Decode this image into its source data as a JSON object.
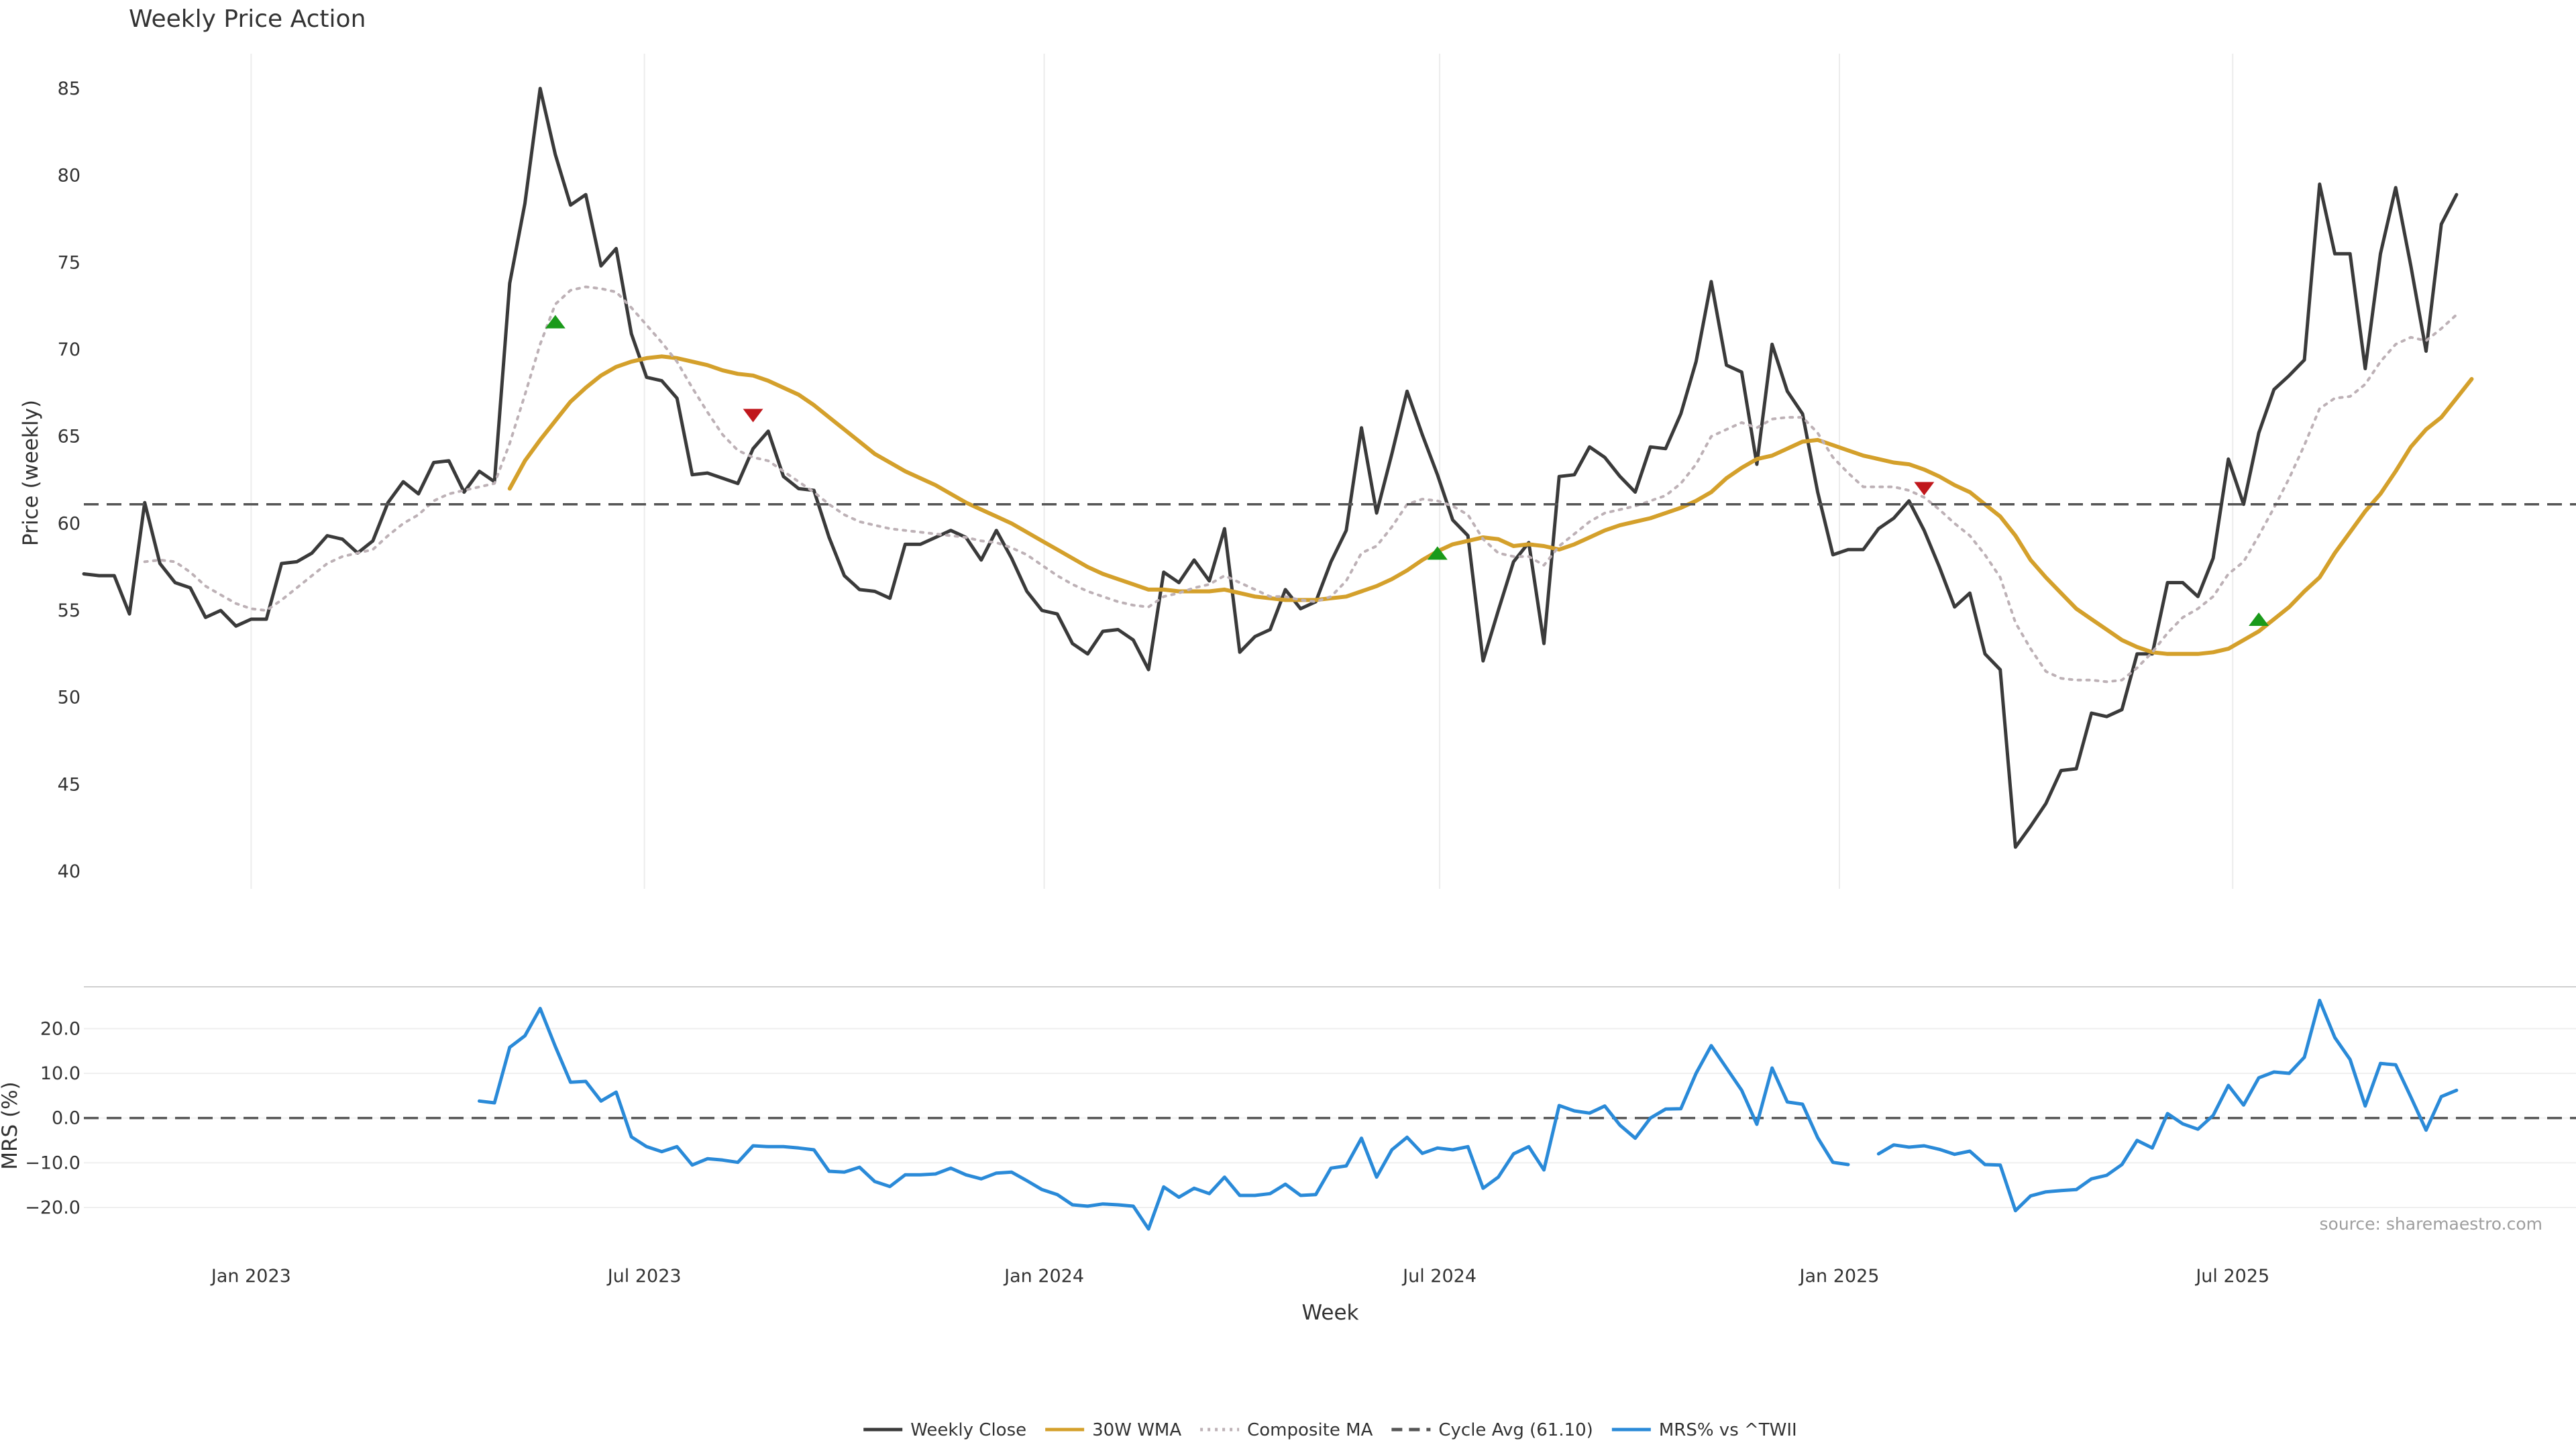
{
  "chart_data": {
    "type": "line",
    "title": "Weekly Price Action",
    "source_note": "source: sharemaestro.com",
    "xlabel": "Week",
    "x_ticks": [
      {
        "date": "2023-01-01",
        "label": "Jan 2023"
      },
      {
        "date": "2023-07-01",
        "label": "Jul 2023"
      },
      {
        "date": "2024-01-01",
        "label": "Jan 2024"
      },
      {
        "date": "2024-07-01",
        "label": "Jul 2024"
      },
      {
        "date": "2025-01-01",
        "label": "Jan 2025"
      },
      {
        "date": "2025-07-01",
        "label": "Jul 2025"
      }
    ],
    "x_range": [
      "2022-10-16",
      "2025-12-06"
    ],
    "dates": [
      "2022-10-16",
      "2022-10-23",
      "2022-10-30",
      "2022-11-06",
      "2022-11-13",
      "2022-11-20",
      "2022-11-27",
      "2022-12-04",
      "2022-12-11",
      "2022-12-18",
      "2022-12-25",
      "2023-01-01",
      "2023-01-08",
      "2023-01-15",
      "2023-01-22",
      "2023-01-29",
      "2023-02-05",
      "2023-02-12",
      "2023-02-19",
      "2023-02-26",
      "2023-03-05",
      "2023-03-12",
      "2023-03-19",
      "2023-03-26",
      "2023-04-02",
      "2023-04-09",
      "2023-04-16",
      "2023-04-23",
      "2023-04-30",
      "2023-05-07",
      "2023-05-14",
      "2023-05-21",
      "2023-05-28",
      "2023-06-04",
      "2023-06-11",
      "2023-06-18",
      "2023-06-25",
      "2023-07-02",
      "2023-07-09",
      "2023-07-16",
      "2023-07-23",
      "2023-07-30",
      "2023-08-06",
      "2023-08-13",
      "2023-08-20",
      "2023-08-27",
      "2023-09-03",
      "2023-09-10",
      "2023-09-17",
      "2023-09-24",
      "2023-10-01",
      "2023-10-08",
      "2023-10-15",
      "2023-10-22",
      "2023-10-29",
      "2023-11-05",
      "2023-11-12",
      "2023-11-19",
      "2023-11-26",
      "2023-12-03",
      "2023-12-10",
      "2023-12-17",
      "2023-12-24",
      "2023-12-31",
      "2024-01-07",
      "2024-01-14",
      "2024-01-21",
      "2024-01-28",
      "2024-02-04",
      "2024-02-11",
      "2024-02-18",
      "2024-02-25",
      "2024-03-03",
      "2024-03-10",
      "2024-03-17",
      "2024-03-24",
      "2024-03-31",
      "2024-04-07",
      "2024-04-14",
      "2024-04-21",
      "2024-04-28",
      "2024-05-05",
      "2024-05-12",
      "2024-05-19",
      "2024-05-26",
      "2024-06-02",
      "2024-06-09",
      "2024-06-16",
      "2024-06-23",
      "2024-06-30",
      "2024-07-07",
      "2024-07-14",
      "2024-07-21",
      "2024-07-28",
      "2024-08-04",
      "2024-08-11",
      "2024-08-18",
      "2024-08-25",
      "2024-09-01",
      "2024-09-08",
      "2024-09-15",
      "2024-09-22",
      "2024-09-29",
      "2024-10-06",
      "2024-10-13",
      "2024-10-20",
      "2024-10-27",
      "2024-11-03",
      "2024-11-10",
      "2024-11-17",
      "2024-11-24",
      "2024-12-01",
      "2024-12-08",
      "2024-12-15",
      "2024-12-22",
      "2024-12-29",
      "2025-01-05",
      "2025-01-12",
      "2025-01-19",
      "2025-01-26",
      "2025-02-02",
      "2025-02-09",
      "2025-02-16",
      "2025-02-23",
      "2025-03-02",
      "2025-03-09",
      "2025-03-16",
      "2025-03-23",
      "2025-03-30",
      "2025-04-06",
      "2025-04-13",
      "2025-04-20",
      "2025-04-27",
      "2025-05-04",
      "2025-05-11",
      "2025-05-18",
      "2025-05-25",
      "2025-06-01",
      "2025-06-08",
      "2025-06-15",
      "2025-06-22",
      "2025-06-29",
      "2025-07-06",
      "2025-07-13",
      "2025-07-20",
      "2025-07-27",
      "2025-08-03",
      "2025-08-10",
      "2025-08-17",
      "2025-08-24",
      "2025-08-31",
      "2025-09-07",
      "2025-09-14",
      "2025-09-21",
      "2025-09-28",
      "2025-10-05",
      "2025-10-12",
      "2025-10-19",
      "2025-10-26",
      "2025-11-02",
      "2025-11-09",
      "2025-11-16",
      "2025-11-23",
      "2025-11-30",
      "2025-12-06"
    ],
    "price_panel": {
      "ylabel": "Price (weekly)",
      "ylim": [
        39,
        87
      ],
      "yticks": [
        40,
        45,
        50,
        55,
        60,
        65,
        70,
        75,
        80,
        85
      ],
      "grid": "x-only",
      "series": [
        {
          "name": "Weekly Close",
          "color": "#3a3a3a",
          "style": "solid",
          "values": [
            57.1,
            57.0,
            57.0,
            54.8,
            61.2,
            57.7,
            56.6,
            56.3,
            54.6,
            55.0,
            54.1,
            54.5,
            54.5,
            57.7,
            57.8,
            58.3,
            59.3,
            59.1,
            58.3,
            59.0,
            61.2,
            62.4,
            61.7,
            63.5,
            63.6,
            61.8,
            63.0,
            62.4,
            73.8,
            78.4,
            85.0,
            81.2,
            78.3,
            78.9,
            74.8,
            75.8,
            70.9,
            68.4,
            68.2,
            67.2,
            62.8,
            62.9,
            62.6,
            62.3,
            64.3,
            65.3,
            62.7,
            62.0,
            61.9,
            59.2,
            57.0,
            56.2,
            56.1,
            55.7,
            58.8,
            58.8,
            59.2,
            59.6,
            59.2,
            57.9,
            59.6,
            58.0,
            56.1,
            55.0,
            54.8,
            53.1,
            52.5,
            53.8,
            53.9,
            53.3,
            51.6,
            57.2,
            56.6,
            57.9,
            56.7,
            59.7,
            52.6,
            53.5,
            53.9,
            56.2,
            55.1,
            55.5,
            57.8,
            59.6,
            65.5,
            60.6,
            64.0,
            67.6,
            65.1,
            62.8,
            60.2,
            59.3,
            52.1,
            55.0,
            57.8,
            58.9,
            53.1,
            62.7,
            62.8,
            64.4,
            63.8,
            62.7,
            61.8,
            64.4,
            64.3,
            66.3,
            69.3,
            73.9,
            69.1,
            68.7,
            63.4,
            70.3,
            67.6,
            66.3,
            61.8,
            58.2,
            58.5,
            58.5,
            59.7,
            60.3,
            61.3,
            59.6,
            57.5,
            55.2,
            56.0,
            52.5,
            51.6,
            41.4,
            42.6,
            43.9,
            45.8,
            45.9,
            49.1,
            48.9,
            49.3,
            52.5,
            52.5,
            56.6,
            56.6,
            55.8,
            58.0,
            63.7,
            61.1,
            65.2,
            67.7,
            68.5,
            69.4,
            79.5,
            75.5,
            75.5,
            68.9,
            75.5,
            79.3,
            74.8,
            69.9,
            77.2,
            78.9
          ]
        },
        {
          "name": "30W WMA",
          "color": "#d4a02b",
          "style": "solid",
          "values": [
            null,
            null,
            null,
            null,
            null,
            null,
            null,
            null,
            null,
            null,
            null,
            null,
            null,
            null,
            null,
            null,
            null,
            null,
            null,
            null,
            null,
            null,
            null,
            null,
            null,
            null,
            null,
            null,
            62.0,
            63.6,
            64.8,
            65.9,
            67.0,
            67.8,
            68.5,
            69.0,
            69.3,
            69.5,
            69.6,
            69.5,
            69.3,
            69.1,
            68.8,
            68.6,
            68.5,
            68.2,
            67.8,
            67.4,
            66.8,
            66.1,
            65.4,
            64.7,
            64.0,
            63.5,
            63.0,
            62.6,
            62.2,
            61.7,
            61.2,
            60.8,
            60.4,
            60.0,
            59.5,
            59.0,
            58.5,
            58.0,
            57.5,
            57.1,
            56.8,
            56.5,
            56.2,
            56.2,
            56.1,
            56.1,
            56.1,
            56.2,
            56.0,
            55.8,
            55.7,
            55.6,
            55.6,
            55.6,
            55.7,
            55.8,
            56.1,
            56.4,
            56.8,
            57.3,
            57.9,
            58.4,
            58.8,
            59.0,
            59.2,
            59.1,
            58.7,
            58.8,
            58.7,
            58.5,
            58.8,
            59.2,
            59.6,
            59.9,
            60.1,
            60.3,
            60.6,
            60.9,
            61.3,
            61.8,
            62.6,
            63.2,
            63.7,
            63.9,
            64.3,
            64.7,
            64.8,
            64.5,
            64.2,
            63.9,
            63.7,
            63.5,
            63.4,
            63.1,
            62.7,
            62.2,
            61.8,
            61.1,
            60.4,
            59.3,
            57.9,
            56.9,
            56.0,
            55.1,
            54.5,
            53.9,
            53.3,
            52.9,
            52.6,
            52.5,
            52.5,
            52.5,
            52.6,
            52.8,
            53.3,
            53.8,
            54.5,
            55.2,
            56.1,
            56.9,
            58.3,
            59.5,
            60.7,
            61.7,
            63.0,
            64.4,
            65.4,
            66.1,
            67.2,
            68.3
          ]
        },
        {
          "name": "Composite MA",
          "color": "#bdb1b6",
          "style": "dotted",
          "values": [
            null,
            null,
            null,
            null,
            57.8,
            57.9,
            57.8,
            57.2,
            56.4,
            55.9,
            55.4,
            55.1,
            55.0,
            55.6,
            56.3,
            57.0,
            57.7,
            58.1,
            58.3,
            58.5,
            59.3,
            60.0,
            60.5,
            61.3,
            61.7,
            61.9,
            62.1,
            62.3,
            64.6,
            67.4,
            70.3,
            72.6,
            73.4,
            73.6,
            73.5,
            73.3,
            72.4,
            71.4,
            70.4,
            69.3,
            67.8,
            66.4,
            65.1,
            64.2,
            63.8,
            63.6,
            63.0,
            62.4,
            61.8,
            61.1,
            60.5,
            60.1,
            59.9,
            59.7,
            59.6,
            59.5,
            59.4,
            59.3,
            59.2,
            59.0,
            58.9,
            58.6,
            58.2,
            57.6,
            57.0,
            56.5,
            56.1,
            55.8,
            55.5,
            55.3,
            55.2,
            55.8,
            56.0,
            56.3,
            56.5,
            57.0,
            56.6,
            56.2,
            55.8,
            55.8,
            55.6,
            55.5,
            55.8,
            56.7,
            58.3,
            58.7,
            59.8,
            61.1,
            61.4,
            61.3,
            61.0,
            60.5,
            59.1,
            58.3,
            58.1,
            58.1,
            57.6,
            58.7,
            59.4,
            60.1,
            60.6,
            60.8,
            61.0,
            61.3,
            61.6,
            62.3,
            63.4,
            65.0,
            65.4,
            65.8,
            65.5,
            66.0,
            66.1,
            66.1,
            65.2,
            63.8,
            62.9,
            62.1,
            62.1,
            62.1,
            61.9,
            61.5,
            60.8,
            60.0,
            59.3,
            58.2,
            56.9,
            54.3,
            52.8,
            51.5,
            51.1,
            51.0,
            51.0,
            50.9,
            51.0,
            51.7,
            52.6,
            53.7,
            54.6,
            55.1,
            55.8,
            57.1,
            57.8,
            59.3,
            60.9,
            62.6,
            64.5,
            66.6,
            67.2,
            67.3,
            68.0,
            69.3,
            70.3,
            70.7,
            70.5,
            71.2,
            72.0
          ]
        },
        {
          "name": "Cycle Avg (61.10)",
          "color": "#555555",
          "style": "dashed",
          "value": 61.1
        }
      ],
      "markers": [
        {
          "date": "2023-05-21",
          "value": 71.6,
          "kind": "up",
          "color": "#1a9a1a"
        },
        {
          "date": "2023-08-20",
          "value": 66.2,
          "kind": "down",
          "color": "#c0171c"
        },
        {
          "date": "2024-06-30",
          "value": 58.3,
          "kind": "up",
          "color": "#1a9a1a"
        },
        {
          "date": "2025-02-09",
          "value": 62.0,
          "kind": "down",
          "color": "#c0171c"
        },
        {
          "date": "2025-07-13",
          "value": 54.5,
          "kind": "up",
          "color": "#1a9a1a"
        }
      ]
    },
    "mrs_panel": {
      "ylabel": "MRS (%)",
      "ylim": [
        -26,
        28
      ],
      "yticks": [
        -20,
        -10,
        0,
        10,
        20
      ],
      "tick_labels": [
        "−20.0",
        "−10.0",
        "0.0",
        "10.0",
        "20.0"
      ],
      "grid": "y",
      "zero_line": {
        "value": 0,
        "style": "dashed",
        "color": "#555555"
      },
      "series": [
        {
          "name": "MRS% vs ^TWII",
          "color": "#2a8ad8",
          "style": "solid",
          "values": [
            null,
            null,
            null,
            null,
            null,
            null,
            null,
            null,
            null,
            null,
            null,
            null,
            null,
            null,
            null,
            null,
            null,
            null,
            null,
            null,
            null,
            null,
            null,
            null,
            null,
            null,
            3.8,
            3.4,
            15.8,
            18.4,
            24.5,
            16.0,
            8.0,
            8.2,
            3.8,
            5.8,
            -4.2,
            -6.4,
            -7.5,
            -6.4,
            -10.5,
            -9.1,
            -9.4,
            -9.9,
            -6.2,
            -6.4,
            -6.4,
            -6.7,
            -7.1,
            -11.9,
            -12.1,
            -11.0,
            -14.2,
            -15.3,
            -12.7,
            -12.7,
            -12.5,
            -11.2,
            -12.7,
            -13.6,
            -12.3,
            -12.1,
            -14.0,
            -16.0,
            -17.1,
            -19.4,
            -19.7,
            -19.2,
            -19.4,
            -19.7,
            -24.8,
            -15.4,
            -17.7,
            -15.7,
            -16.9,
            -13.2,
            -17.3,
            -17.3,
            -16.9,
            -14.8,
            -17.3,
            -17.1,
            -11.2,
            -10.7,
            -4.5,
            -13.2,
            -7.1,
            -4.3,
            -7.9,
            -6.7,
            -7.1,
            -6.4,
            -15.7,
            -13.2,
            -8.0,
            -6.4,
            -11.6,
            2.8,
            1.6,
            1.1,
            2.7,
            -1.6,
            -4.5,
            0.0,
            2.0,
            2.1,
            10.0,
            16.2,
            11.2,
            6.2,
            -1.4,
            11.2,
            3.6,
            3.1,
            -4.4,
            -9.9,
            -10.4,
            null,
            -8.0,
            -6.0,
            -6.5,
            -6.2,
            -7.0,
            -8.1,
            -7.4,
            -10.4,
            -10.5,
            -20.7,
            -17.4,
            -16.5,
            -16.2,
            -16.0,
            -13.6,
            -12.8,
            -10.4,
            -5.0,
            -6.7,
            1.0,
            -1.3,
            -2.5,
            0.6,
            7.3,
            2.9,
            9.0,
            10.3,
            10.0,
            13.6,
            26.3,
            18.0,
            13.1,
            2.7,
            12.2,
            11.9,
            4.7,
            -2.7,
            4.8,
            6.2
          ]
        }
      ]
    },
    "legend": {
      "placement": "bottom-center",
      "entries": [
        {
          "label": "Weekly Close",
          "color": "#3a3a3a",
          "style": "solid"
        },
        {
          "label": "30W WMA",
          "color": "#d4a02b",
          "style": "solid"
        },
        {
          "label": "Composite MA",
          "color": "#bdb1b6",
          "style": "dotted"
        },
        {
          "label": "Cycle Avg (61.10)",
          "color": "#555555",
          "style": "dashed"
        },
        {
          "label": "MRS% vs ^TWII",
          "color": "#2a8ad8",
          "style": "solid"
        }
      ]
    }
  }
}
